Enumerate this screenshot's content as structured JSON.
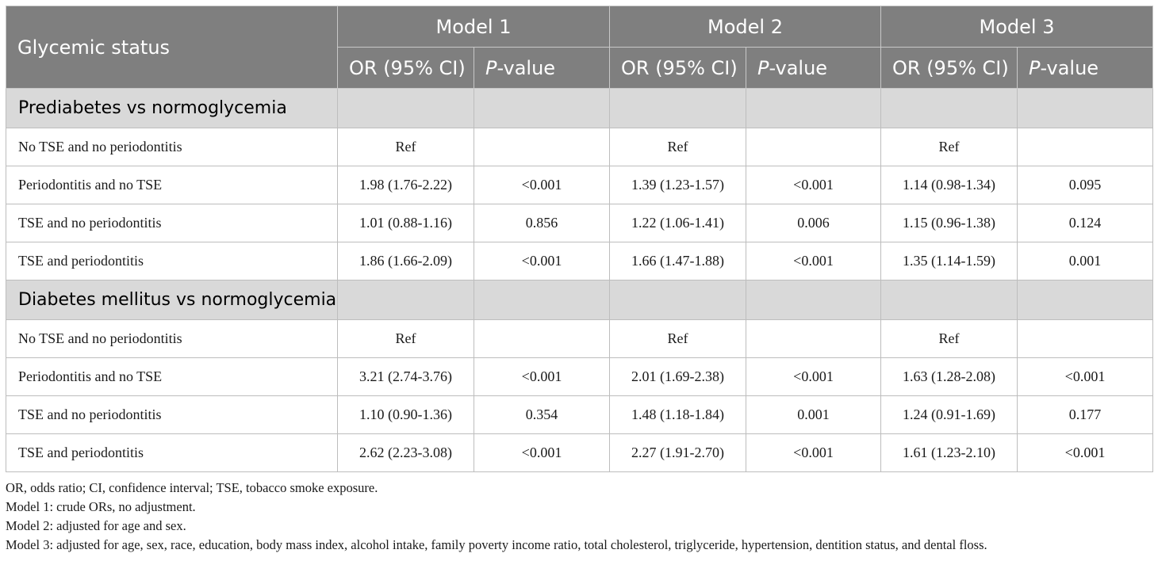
{
  "header": {
    "glycemic_status": "Glycemic status",
    "models": [
      "Model 1",
      "Model 2",
      "Model 3"
    ],
    "or_label": "OR (95% CI)",
    "p_label_italic": "P",
    "p_label_rest": "-value"
  },
  "sections": [
    {
      "title": "Prediabetes vs normoglycemia",
      "rows": [
        {
          "label": "No TSE and no periodontitis",
          "cells": [
            "Ref",
            "",
            "Ref",
            "",
            "Ref",
            ""
          ]
        },
        {
          "label": "Periodontitis and no TSE",
          "cells": [
            "1.98 (1.76-2.22)",
            "<0.001",
            "1.39 (1.23-1.57)",
            "<0.001",
            "1.14 (0.98-1.34)",
            "0.095"
          ]
        },
        {
          "label": "TSE and no periodontitis",
          "cells": [
            "1.01 (0.88-1.16)",
            "0.856",
            "1.22 (1.06-1.41)",
            "0.006",
            "1.15 (0.96-1.38)",
            "0.124"
          ]
        },
        {
          "label": "TSE and periodontitis",
          "cells": [
            "1.86 (1.66-2.09)",
            "<0.001",
            "1.66 (1.47-1.88)",
            "<0.001",
            "1.35 (1.14-1.59)",
            "0.001"
          ]
        }
      ]
    },
    {
      "title": "Diabetes mellitus vs normoglycemia",
      "rows": [
        {
          "label": "No TSE and no periodontitis",
          "cells": [
            "Ref",
            "",
            "Ref",
            "",
            "Ref",
            ""
          ]
        },
        {
          "label": "Periodontitis and no TSE",
          "cells": [
            "3.21 (2.74-3.76)",
            "<0.001",
            "2.01 (1.69-2.38)",
            "<0.001",
            "1.63 (1.28-2.08)",
            "<0.001"
          ]
        },
        {
          "label": "TSE and no periodontitis",
          "cells": [
            "1.10 (0.90-1.36)",
            "0.354",
            "1.48 (1.18-1.84)",
            "0.001",
            "1.24 (0.91-1.69)",
            "0.177"
          ]
        },
        {
          "label": "TSE and periodontitis",
          "cells": [
            "2.62 (2.23-3.08)",
            "<0.001",
            "2.27 (1.91-2.70)",
            "<0.001",
            "1.61 (1.23-2.10)",
            "<0.001"
          ]
        }
      ]
    }
  ],
  "footnotes": [
    "OR, odds ratio; CI, confidence interval; TSE, tobacco smoke exposure.",
    "Model 1: crude ORs, no adjustment.",
    "Model 2: adjusted for age and sex.",
    "Model 3: adjusted for age, sex, race, education, body mass index, alcohol intake, family poverty income ratio, total cholesterol, triglyceride, hypertension, dentition status, and dental floss."
  ],
  "colors": {
    "header_bg": "#7f7f7f",
    "section_bg": "#d9d9d9",
    "border": "#bdbdbd"
  }
}
